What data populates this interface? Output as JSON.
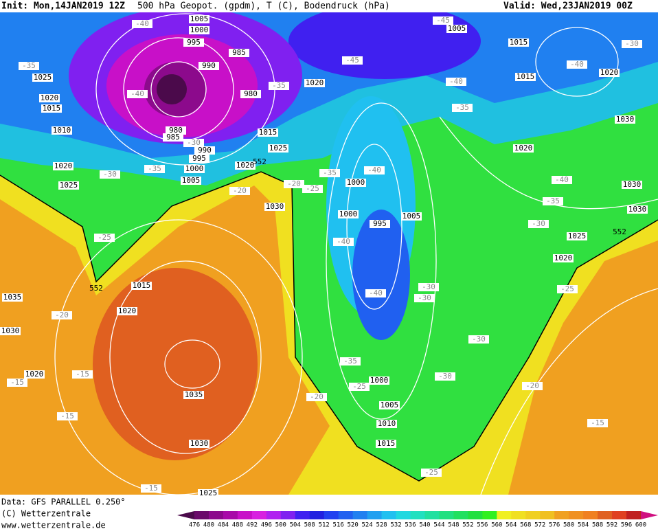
{
  "header": {
    "init": "Init: Mon,14JAN2019 12Z",
    "title": "500 hPa Geopot. (gpdm), T (C), Bodendruck (hPa)",
    "valid": "Valid: Wed,23JAN2019 00Z"
  },
  "footer": {
    "data": "Data: GFS PARALLEL 0.250°",
    "copyright": "(C) Wetterzentrale",
    "url": "www.wetterzentrale.de"
  },
  "legend": {
    "ticks": [
      476,
      480,
      484,
      488,
      492,
      496,
      500,
      504,
      508,
      512,
      516,
      520,
      524,
      528,
      532,
      536,
      540,
      544,
      548,
      552,
      556,
      560,
      564,
      568,
      572,
      576,
      580,
      584,
      588,
      592,
      596,
      600
    ],
    "colors": [
      "#4b0a4b",
      "#6a0a6a",
      "#8c0a8c",
      "#a80aa8",
      "#c810c8",
      "#d820e0",
      "#b020f0",
      "#8020f0",
      "#4020f0",
      "#2020e0",
      "#2040f0",
      "#2060f0",
      "#2080f0",
      "#20a0f0",
      "#20c0f0",
      "#20d8e0",
      "#20e0c0",
      "#20e0a0",
      "#20e080",
      "#20e060",
      "#20e040",
      "#30f020",
      "#f0f020",
      "#f0e020",
      "#f0d020",
      "#f0c020",
      "#f0a020",
      "#f09020",
      "#f08020",
      "#e06020",
      "#e04020",
      "#c02020",
      "#a01020",
      "#d01080"
    ]
  },
  "map": {
    "isobar_labels": [
      1005,
      1000,
      995,
      985,
      990,
      980,
      1025,
      1020,
      1015,
      1010,
      980,
      985,
      990,
      995,
      1000,
      1005,
      1020,
      1025,
      1020,
      1015,
      1025,
      1030,
      1015,
      1020,
      1035,
      1030,
      1020,
      1035,
      1030,
      1025,
      1020,
      1005,
      1015,
      1015,
      1020,
      1030,
      1020,
      1030,
      1030,
      1025,
      1020,
      1000,
      1000,
      995,
      1005,
      1000,
      1005,
      1010,
      1015
    ],
    "temperature_labels": [
      -40,
      -35,
      -40,
      -45,
      -45,
      -40,
      -35,
      -40,
      -35,
      -40,
      -40,
      -30,
      -30,
      -30,
      -30,
      -35,
      -25,
      -20,
      -25,
      -20,
      -15,
      -25,
      -30,
      -35,
      -40,
      -40,
      -30,
      -20,
      -20,
      -25,
      -30,
      -35,
      -25,
      -20,
      -15,
      -15,
      -15,
      -15,
      -30,
      -35
    ],
    "contour_labels": [
      552,
      552,
      552
    ]
  }
}
